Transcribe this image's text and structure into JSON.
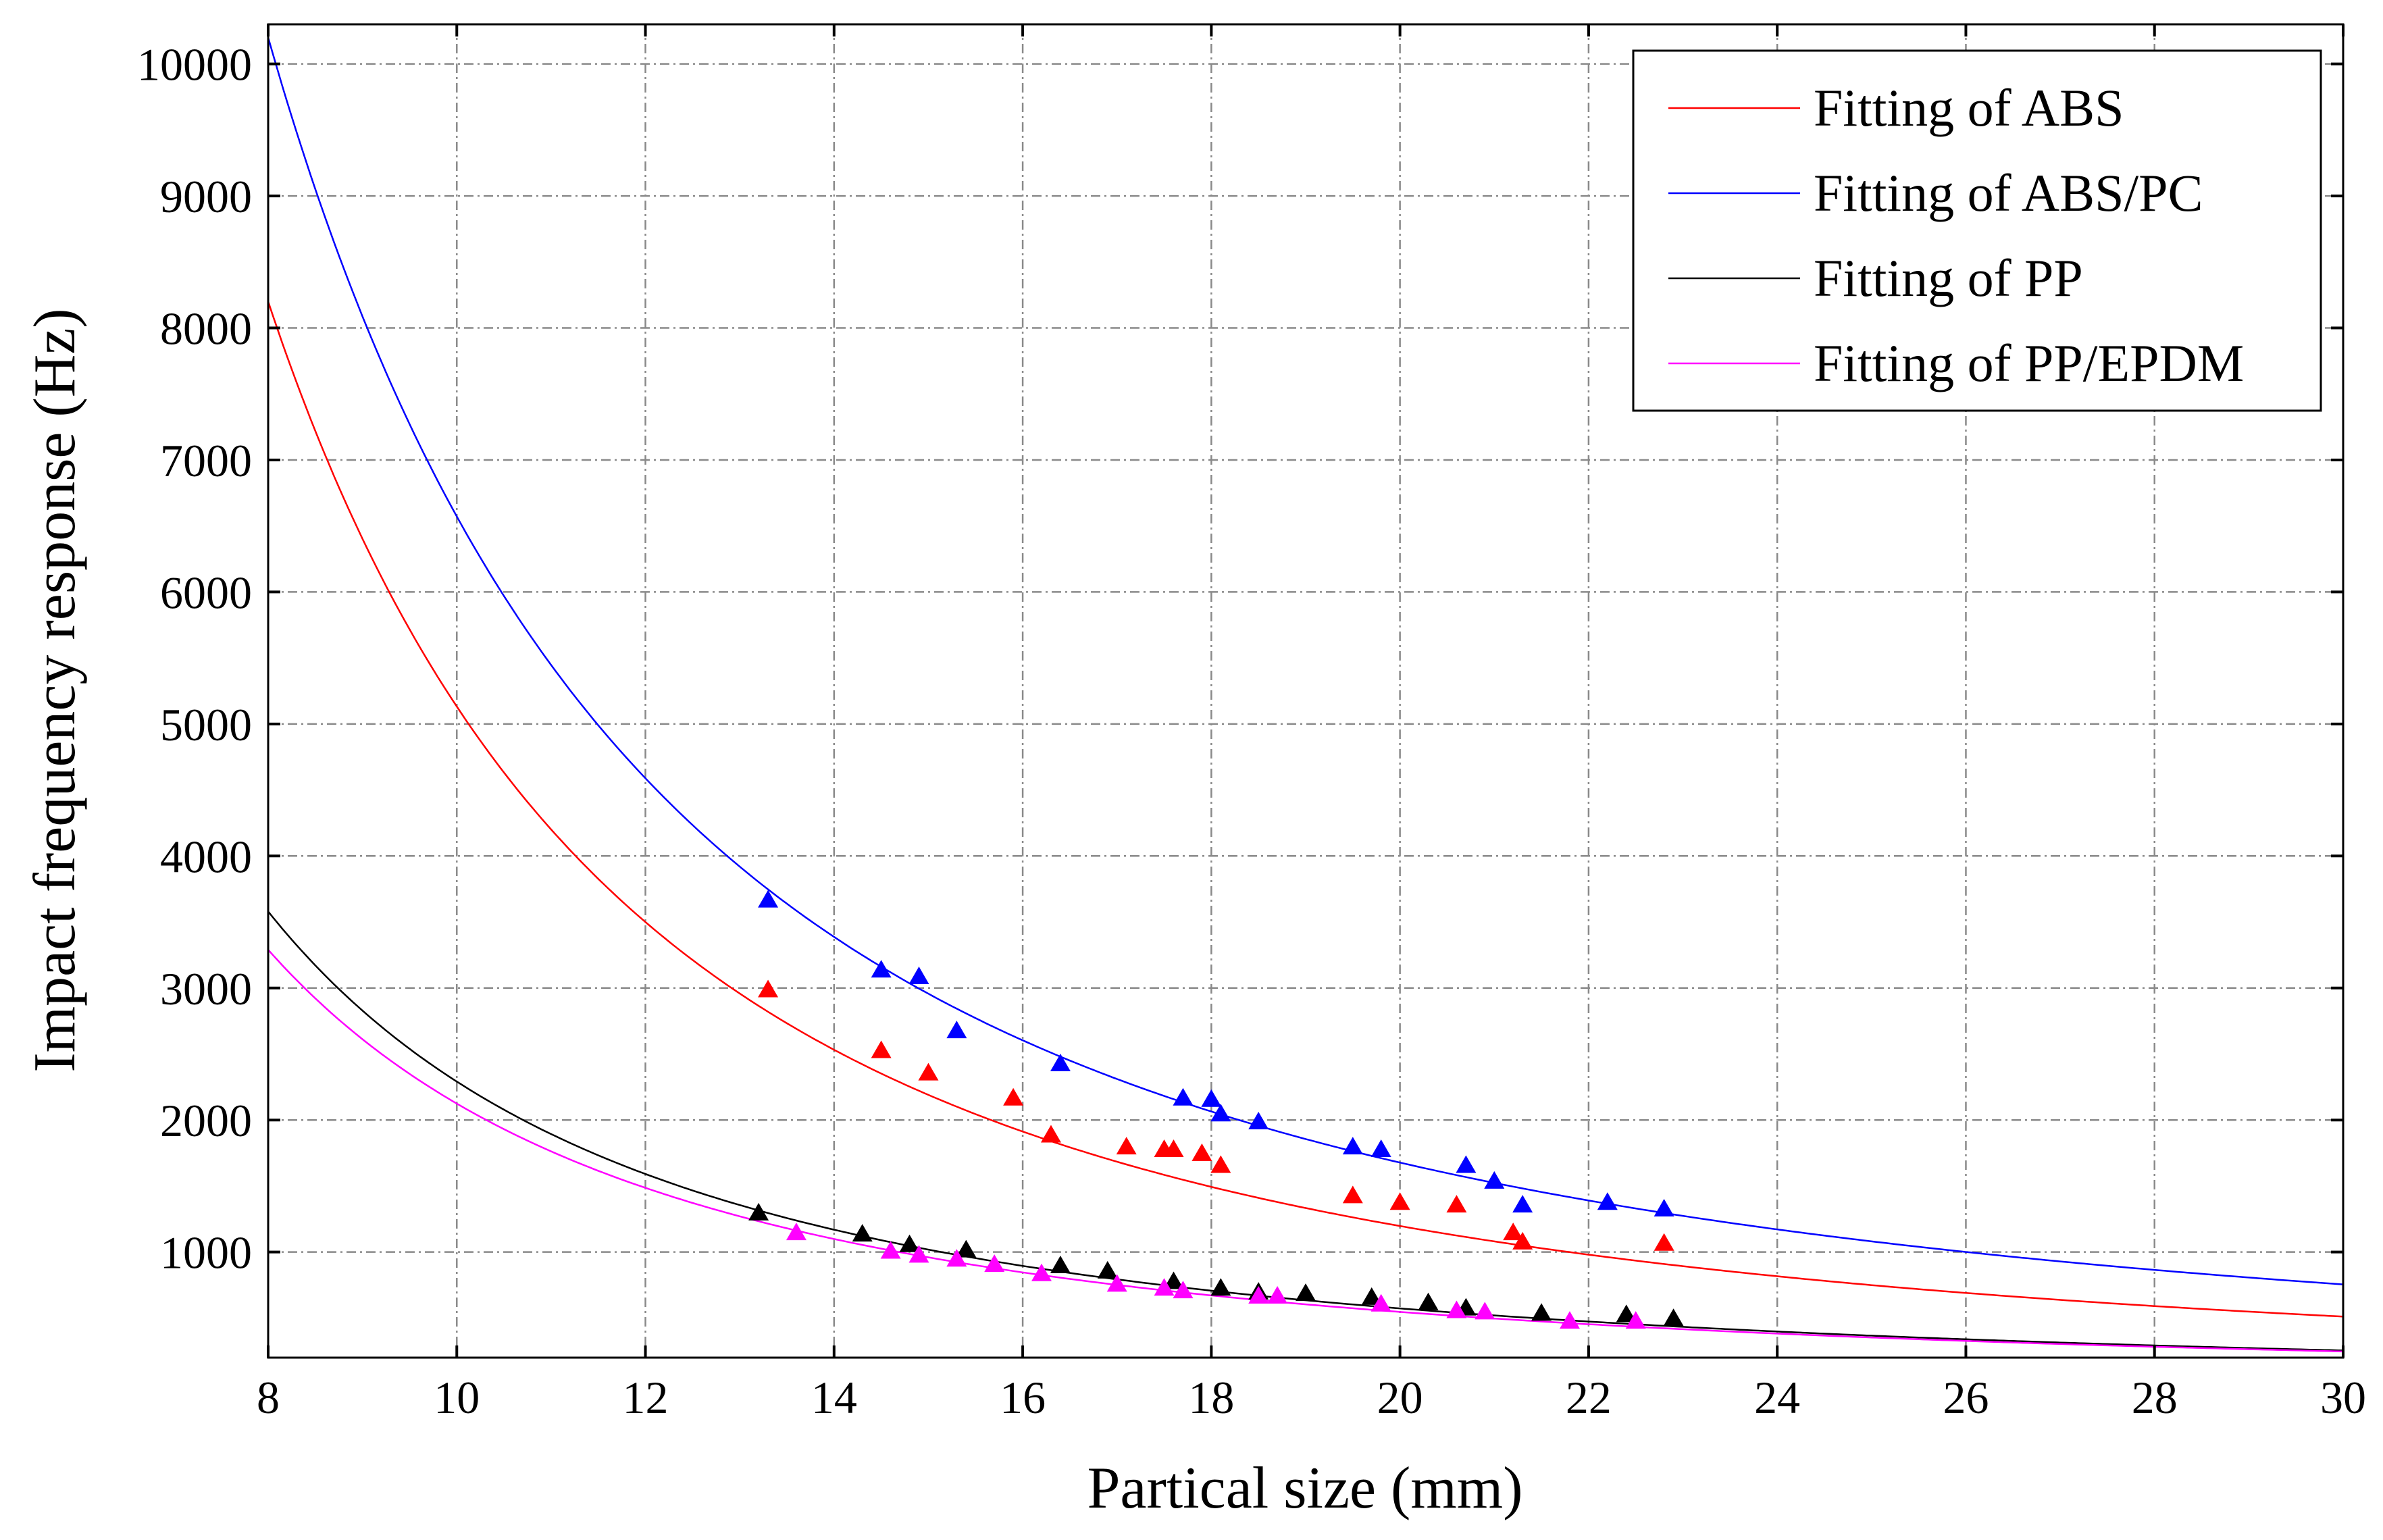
{
  "chart_data": {
    "type": "scatter",
    "title": "",
    "xlabel": "Partical size (mm)",
    "ylabel": "Impact frequency response (Hz)",
    "xlim": [
      8,
      30
    ],
    "ylim": [
      200,
      10300
    ],
    "xticks": [
      8,
      10,
      12,
      14,
      16,
      18,
      20,
      22,
      24,
      26,
      28,
      30
    ],
    "yticks": [
      1000,
      2000,
      3000,
      4000,
      5000,
      6000,
      7000,
      8000,
      9000,
      10000
    ],
    "grid": true,
    "legend_position": "top-right",
    "series": [
      {
        "name": "Fitting of ABS",
        "color": "#ff0000",
        "fit": {
          "model": "power",
          "a": 8200,
          "x0": 8,
          "exponent": -2.1
        },
        "points": [
          [
            13.3,
            2980
          ],
          [
            14.5,
            2520
          ],
          [
            15.0,
            2350
          ],
          [
            15.9,
            2160
          ],
          [
            16.3,
            1880
          ],
          [
            17.1,
            1790
          ],
          [
            17.5,
            1770
          ],
          [
            17.6,
            1770
          ],
          [
            17.9,
            1740
          ],
          [
            18.1,
            1650
          ],
          [
            19.5,
            1420
          ],
          [
            20.0,
            1370
          ],
          [
            20.6,
            1350
          ],
          [
            21.2,
            1140
          ],
          [
            21.3,
            1070
          ],
          [
            22.8,
            1060
          ]
        ]
      },
      {
        "name": "Fitting of ABS/PC",
        "color": "#0000ff",
        "fit": {
          "model": "power",
          "a": 10200,
          "x0": 8,
          "exponent": -1.97
        },
        "points": [
          [
            13.3,
            3660
          ],
          [
            14.5,
            3130
          ],
          [
            14.9,
            3080
          ],
          [
            15.3,
            2670
          ],
          [
            16.4,
            2420
          ],
          [
            17.7,
            2160
          ],
          [
            18.0,
            2150
          ],
          [
            18.1,
            2040
          ],
          [
            18.5,
            1980
          ],
          [
            19.5,
            1790
          ],
          [
            19.8,
            1770
          ],
          [
            20.7,
            1650
          ],
          [
            21.0,
            1530
          ],
          [
            21.3,
            1350
          ],
          [
            22.2,
            1370
          ],
          [
            22.8,
            1320
          ]
        ]
      },
      {
        "name": "Fitting of PP",
        "color": "#000000",
        "fit": {
          "model": "power",
          "a": 3580,
          "x0": 8,
          "exponent": -2.0
        },
        "points": [
          [
            13.2,
            1290
          ],
          [
            14.3,
            1130
          ],
          [
            14.8,
            1050
          ],
          [
            15.4,
            1010
          ],
          [
            16.4,
            890
          ],
          [
            16.9,
            850
          ],
          [
            17.6,
            770
          ],
          [
            18.1,
            720
          ],
          [
            18.5,
            690
          ],
          [
            19.0,
            680
          ],
          [
            19.7,
            650
          ],
          [
            20.3,
            610
          ],
          [
            20.7,
            570
          ],
          [
            21.5,
            530
          ],
          [
            22.4,
            520
          ],
          [
            22.9,
            490
          ]
        ]
      },
      {
        "name": "Fitting of PP/EPDM",
        "color": "#ff00ff",
        "fit": {
          "model": "power",
          "a": 3290,
          "x0": 8,
          "exponent": -1.96
        },
        "points": [
          [
            13.6,
            1140
          ],
          [
            14.6,
            1000
          ],
          [
            14.9,
            970
          ],
          [
            15.3,
            940
          ],
          [
            15.7,
            900
          ],
          [
            16.2,
            830
          ],
          [
            17.0,
            750
          ],
          [
            17.5,
            720
          ],
          [
            17.7,
            700
          ],
          [
            18.5,
            660
          ],
          [
            18.7,
            660
          ],
          [
            19.8,
            600
          ],
          [
            20.6,
            550
          ],
          [
            20.9,
            540
          ],
          [
            21.8,
            470
          ],
          [
            22.5,
            470
          ]
        ]
      }
    ]
  }
}
